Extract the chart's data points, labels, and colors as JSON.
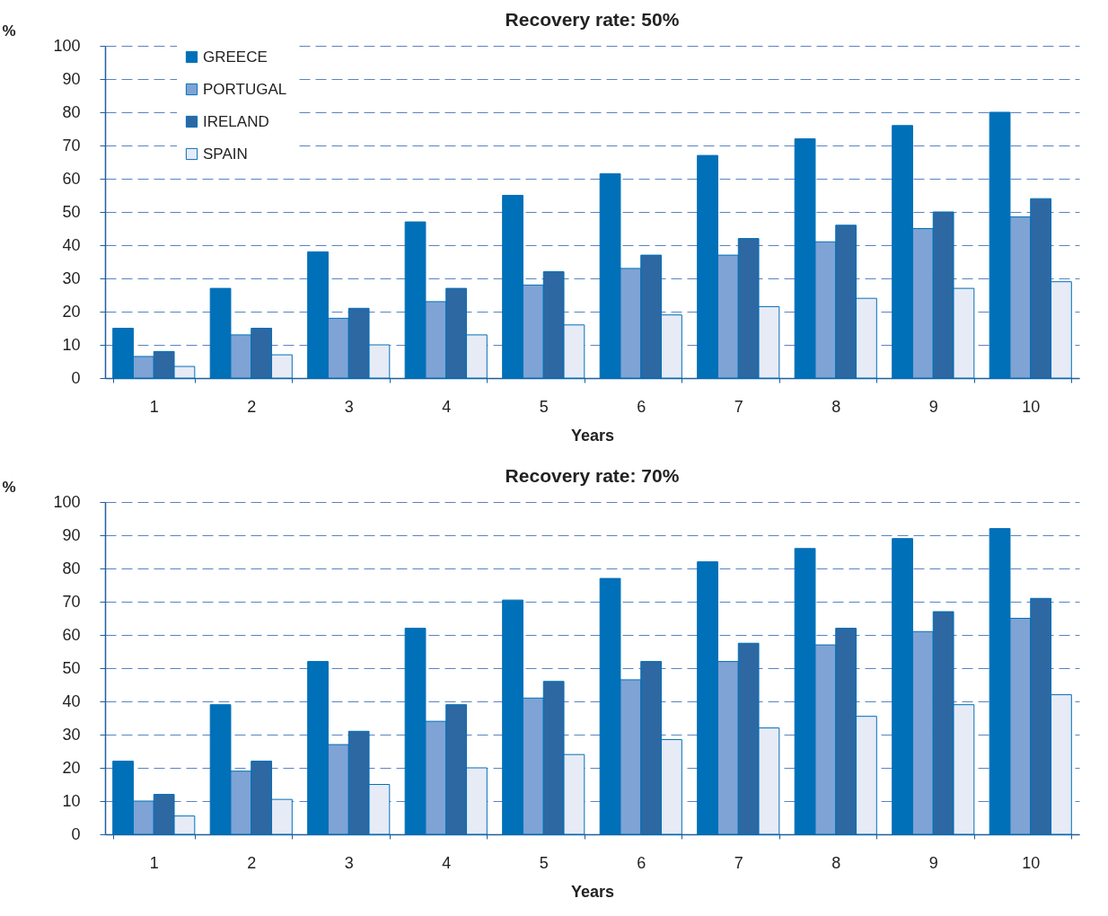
{
  "chart_data": [
    {
      "type": "bar",
      "title": "Recovery rate: 50%",
      "xlabel": "Years",
      "ylabel": "%",
      "categories": [
        "1",
        "2",
        "3",
        "4",
        "5",
        "6",
        "7",
        "8",
        "9",
        "10"
      ],
      "series": [
        {
          "name": "GREECE",
          "color": "#0070b8",
          "values": [
            15,
            27,
            38,
            47,
            55,
            61.5,
            67,
            72,
            76,
            80
          ]
        },
        {
          "name": "PORTUGAL",
          "color": "#7fa3d5",
          "values": [
            6.5,
            13,
            18,
            23,
            28,
            33,
            37,
            41,
            45,
            48.5
          ]
        },
        {
          "name": "IRELAND",
          "color": "#2d68a2",
          "values": [
            8,
            15,
            21,
            27,
            32,
            37,
            42,
            46,
            50,
            54
          ]
        },
        {
          "name": "SPAIN",
          "color": "#e7ebf6",
          "values": [
            3.5,
            7,
            10,
            13,
            16,
            19,
            21.5,
            24,
            27,
            29
          ]
        }
      ],
      "ylim": [
        0,
        100
      ],
      "yticks": [
        0,
        10,
        20,
        30,
        40,
        50,
        60,
        70,
        80,
        90,
        100
      ],
      "grid": "y",
      "legend": "top left"
    },
    {
      "type": "bar",
      "title": "Recovery rate: 70%",
      "xlabel": "Years",
      "ylabel": "%",
      "categories": [
        "1",
        "2",
        "3",
        "4",
        "5",
        "6",
        "7",
        "8",
        "9",
        "10"
      ],
      "series": [
        {
          "name": "GREECE",
          "color": "#0070b8",
          "values": [
            22,
            39,
            52,
            62,
            70.5,
            77,
            82,
            86,
            89,
            92
          ]
        },
        {
          "name": "PORTUGAL",
          "color": "#7fa3d5",
          "values": [
            10,
            19,
            27,
            34,
            41,
            46.5,
            52,
            57,
            61,
            65
          ]
        },
        {
          "name": "IRELAND",
          "color": "#2d68a2",
          "values": [
            12,
            22,
            31,
            39,
            46,
            52,
            57.5,
            62,
            67,
            71
          ]
        },
        {
          "name": "SPAIN",
          "color": "#e7ebf6",
          "values": [
            5.5,
            10.5,
            15,
            20,
            24,
            28.5,
            32,
            35.5,
            39,
            42
          ]
        }
      ],
      "ylim": [
        0,
        100
      ],
      "yticks": [
        0,
        10,
        20,
        30,
        40,
        50,
        60,
        70,
        80,
        90,
        100
      ],
      "grid": "y",
      "legend": "top left"
    }
  ]
}
